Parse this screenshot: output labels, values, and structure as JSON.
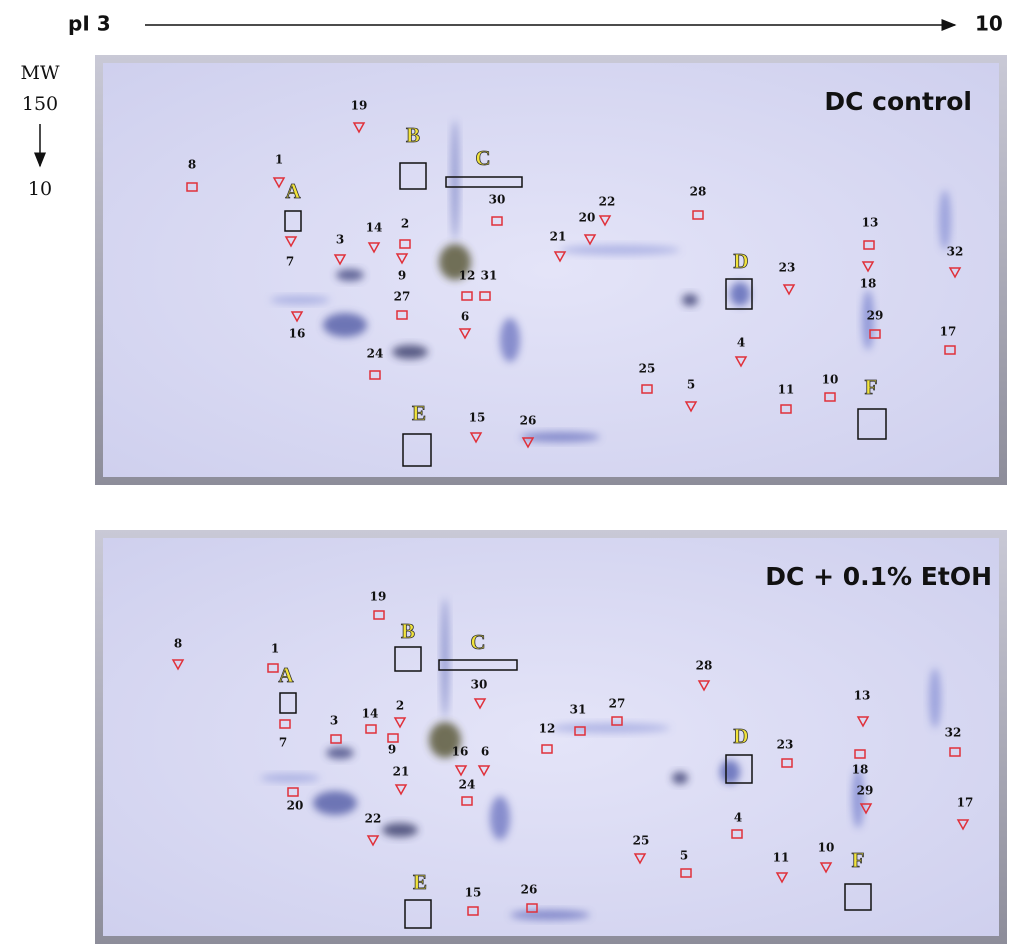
{
  "header": {
    "pi_start": "pI 3",
    "pi_end": "10",
    "mw": "MW",
    "mw_high": "150",
    "mw_low": "10"
  },
  "panels": [
    {
      "title": "DC control",
      "spots": [
        "8",
        "1",
        "19",
        "A",
        "7",
        "3",
        "14",
        "2",
        "9",
        "B",
        "C",
        "30",
        "12",
        "31",
        "27",
        "16",
        "6",
        "24",
        "21",
        "20",
        "22",
        "28",
        "D",
        "23",
        "13",
        "18",
        "29",
        "32",
        "17",
        "25",
        "5",
        "4",
        "11",
        "10",
        "F",
        "E",
        "15",
        "26"
      ]
    },
    {
      "title": "DC + 0.1% EtOH",
      "spots": [
        "8",
        "1",
        "19",
        "A",
        "7",
        "3",
        "14",
        "2",
        "9",
        "B",
        "C",
        "30",
        "12",
        "31",
        "27",
        "16",
        "6",
        "24",
        "21",
        "20",
        "22",
        "28",
        "D",
        "23",
        "13",
        "18",
        "29",
        "32",
        "17",
        "25",
        "5",
        "4",
        "11",
        "10",
        "F",
        "E",
        "15",
        "26"
      ]
    }
  ]
}
